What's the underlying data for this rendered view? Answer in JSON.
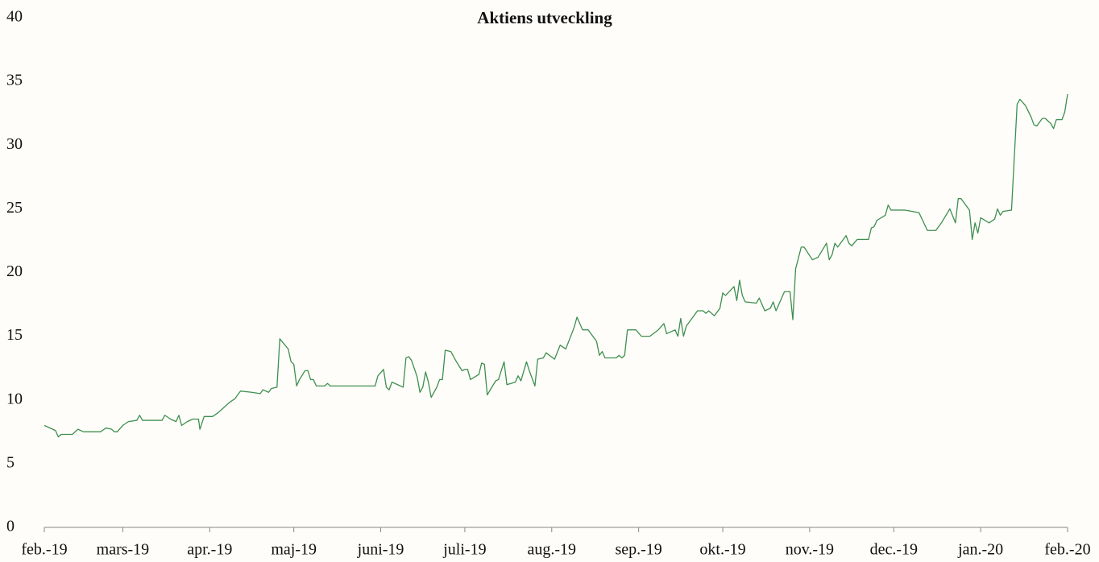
{
  "chart_data": {
    "type": "line",
    "title": "Aktiens utveckling",
    "color": "#3d8f50",
    "x": [
      0,
      3,
      4,
      5,
      6,
      10,
      12,
      14,
      20,
      22,
      24,
      25,
      26,
      28,
      30,
      33,
      34,
      35,
      42,
      43,
      45,
      47,
      48,
      49,
      51,
      53,
      55,
      55.5,
      57,
      60,
      62,
      66,
      68,
      70,
      74,
      77,
      78,
      80,
      81,
      83,
      84,
      87,
      88,
      89,
      90,
      91,
      93,
      94,
      95,
      96,
      97,
      100,
      101,
      102,
      118,
      119,
      121,
      122,
      123,
      124,
      126,
      128,
      129,
      130,
      131,
      133,
      134,
      135,
      136,
      137,
      138,
      140,
      141,
      142,
      143,
      145,
      147,
      149,
      150,
      151,
      152,
      155,
      156,
      157,
      158,
      161,
      162,
      164,
      165,
      168,
      169,
      170,
      172,
      173,
      175,
      176,
      178,
      179,
      182,
      184,
      186,
      189,
      190,
      192,
      194,
      197,
      198,
      199,
      200,
      204,
      205,
      206,
      207,
      208,
      211,
      213,
      216,
      219,
      221,
      222,
      225,
      226,
      227,
      228,
      229,
      231,
      233,
      235,
      236,
      237,
      239,
      241,
      242,
      243,
      246,
      247,
      248,
      249,
      250,
      254,
      255,
      257,
      259,
      260,
      261,
      264,
      266,
      267,
      268,
      270,
      271,
      274,
      276,
      279,
      280,
      281,
      282,
      283,
      286,
      287,
      288,
      290,
      294,
      295,
      296,
      297,
      300,
      301,
      302,
      307,
      312,
      315,
      318,
      320,
      323,
      325,
      326,
      327,
      330,
      331,
      332,
      333,
      334,
      337,
      339,
      340,
      341,
      342,
      345,
      347,
      348,
      350,
      352,
      353,
      354,
      356,
      357,
      359,
      360,
      361,
      363,
      364,
      365
    ],
    "values": [
      8.0,
      7.7,
      7.6,
      7.1,
      7.3,
      7.3,
      7.7,
      7.5,
      7.5,
      7.8,
      7.7,
      7.5,
      7.5,
      8.0,
      8.3,
      8.4,
      8.8,
      8.4,
      8.4,
      8.8,
      8.5,
      8.3,
      8.8,
      8.0,
      8.3,
      8.5,
      8.5,
      7.7,
      8.7,
      8.7,
      9.0,
      9.8,
      10.1,
      10.7,
      10.6,
      10.5,
      10.8,
      10.6,
      10.9,
      11.0,
      14.8,
      14.0,
      13.0,
      12.8,
      11.1,
      11.6,
      12.3,
      12.3,
      11.6,
      11.6,
      11.1,
      11.1,
      11.3,
      11.1,
      11.1,
      11.9,
      12.4,
      11.0,
      10.8,
      11.4,
      11.2,
      11.0,
      13.3,
      13.4,
      13.1,
      11.8,
      10.6,
      11.0,
      12.2,
      11.4,
      10.2,
      11.0,
      11.6,
      11.6,
      13.9,
      13.8,
      13.0,
      12.3,
      12.4,
      12.4,
      11.6,
      12.0,
      12.9,
      12.8,
      10.4,
      11.5,
      11.6,
      13.0,
      11.2,
      11.4,
      11.9,
      11.5,
      13.0,
      12.3,
      11.1,
      13.2,
      13.3,
      13.7,
      13.2,
      14.3,
      14.0,
      15.7,
      16.5,
      15.5,
      15.5,
      14.6,
      13.5,
      13.8,
      13.3,
      13.3,
      13.5,
      13.3,
      13.5,
      15.5,
      15.5,
      15.0,
      15.0,
      15.5,
      16.0,
      15.2,
      15.5,
      15.0,
      16.4,
      15.0,
      15.8,
      16.4,
      17.0,
      17.0,
      16.8,
      17.0,
      16.6,
      17.2,
      18.4,
      18.2,
      18.9,
      17.8,
      19.4,
      18.2,
      17.7,
      17.6,
      18.0,
      17.0,
      17.2,
      17.7,
      17.0,
      18.5,
      18.5,
      16.3,
      20.3,
      22.0,
      22.0,
      21.0,
      21.2,
      22.3,
      21.0,
      21.4,
      22.3,
      22.0,
      22.9,
      22.3,
      22.1,
      22.6,
      22.6,
      23.5,
      23.6,
      24.1,
      24.5,
      25.3,
      24.9,
      24.9,
      24.7,
      23.3,
      23.3,
      23.9,
      25.0,
      23.9,
      25.8,
      25.8,
      24.9,
      22.6,
      23.9,
      23.1,
      24.3,
      23.9,
      24.2,
      25.0,
      24.5,
      24.8,
      24.9,
      33.2,
      33.6,
      33.1,
      32.2,
      31.6,
      31.5,
      32.1,
      32.1,
      31.7,
      31.3,
      32.0,
      32.0,
      32.6,
      34.0
    ],
    "xlim": [
      0,
      365
    ],
    "xticks": [
      {
        "value": 0,
        "label": "feb.-19"
      },
      {
        "value": 28,
        "label": "mars-19"
      },
      {
        "value": 59,
        "label": "apr.-19"
      },
      {
        "value": 89,
        "label": "maj-19"
      },
      {
        "value": 120,
        "label": "juni-19"
      },
      {
        "value": 150,
        "label": "juli-19"
      },
      {
        "value": 181,
        "label": "aug.-19"
      },
      {
        "value": 212,
        "label": "sep.-19"
      },
      {
        "value": 242,
        "label": "okt.-19"
      },
      {
        "value": 273,
        "label": "nov.-19"
      },
      {
        "value": 303,
        "label": "dec.-19"
      },
      {
        "value": 334,
        "label": "jan.-20"
      },
      {
        "value": 365,
        "label": "feb.-20"
      }
    ],
    "ylim": [
      0,
      40
    ],
    "yticks": [
      0,
      5,
      10,
      15,
      20,
      25,
      30,
      35,
      40
    ]
  }
}
